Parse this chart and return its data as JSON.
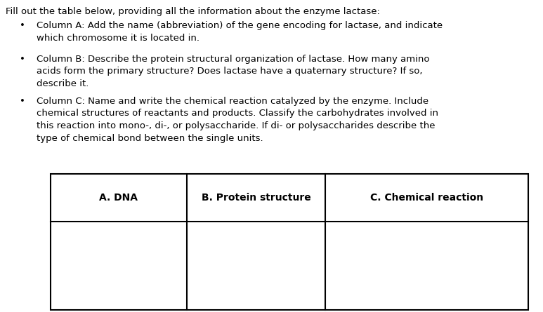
{
  "title_text": "Fill out the table below, providing all the information about the enzyme lactase:",
  "bullet1": "Column A: Add the name (abbreviation) of the gene encoding for lactase, and indicate\nwhich chromosome it is located in.",
  "bullet2": "Column B: Describe the protein structural organization of lactase. How many amino\nacids form the primary structure? Does lactase have a quaternary structure? If so,\ndescribe it.",
  "bullet3": "Column C: Name and write the chemical reaction catalyzed by the enzyme. Include\nchemical structures of reactants and products. Classify the carbohydrates involved in\nthis reaction into mono-, di-, or polysaccharide. If di- or polysaccharides describe the\ntype of chemical bond between the single units.",
  "col_headers": [
    "A. DNA",
    "B. Protein structure",
    "C. Chemical reaction"
  ],
  "background_color": "#ffffff",
  "text_color": "#000000",
  "font_size": 9.5,
  "font_size_header": 10.0,
  "fig_width": 7.73,
  "fig_height": 4.45,
  "dpi": 100
}
